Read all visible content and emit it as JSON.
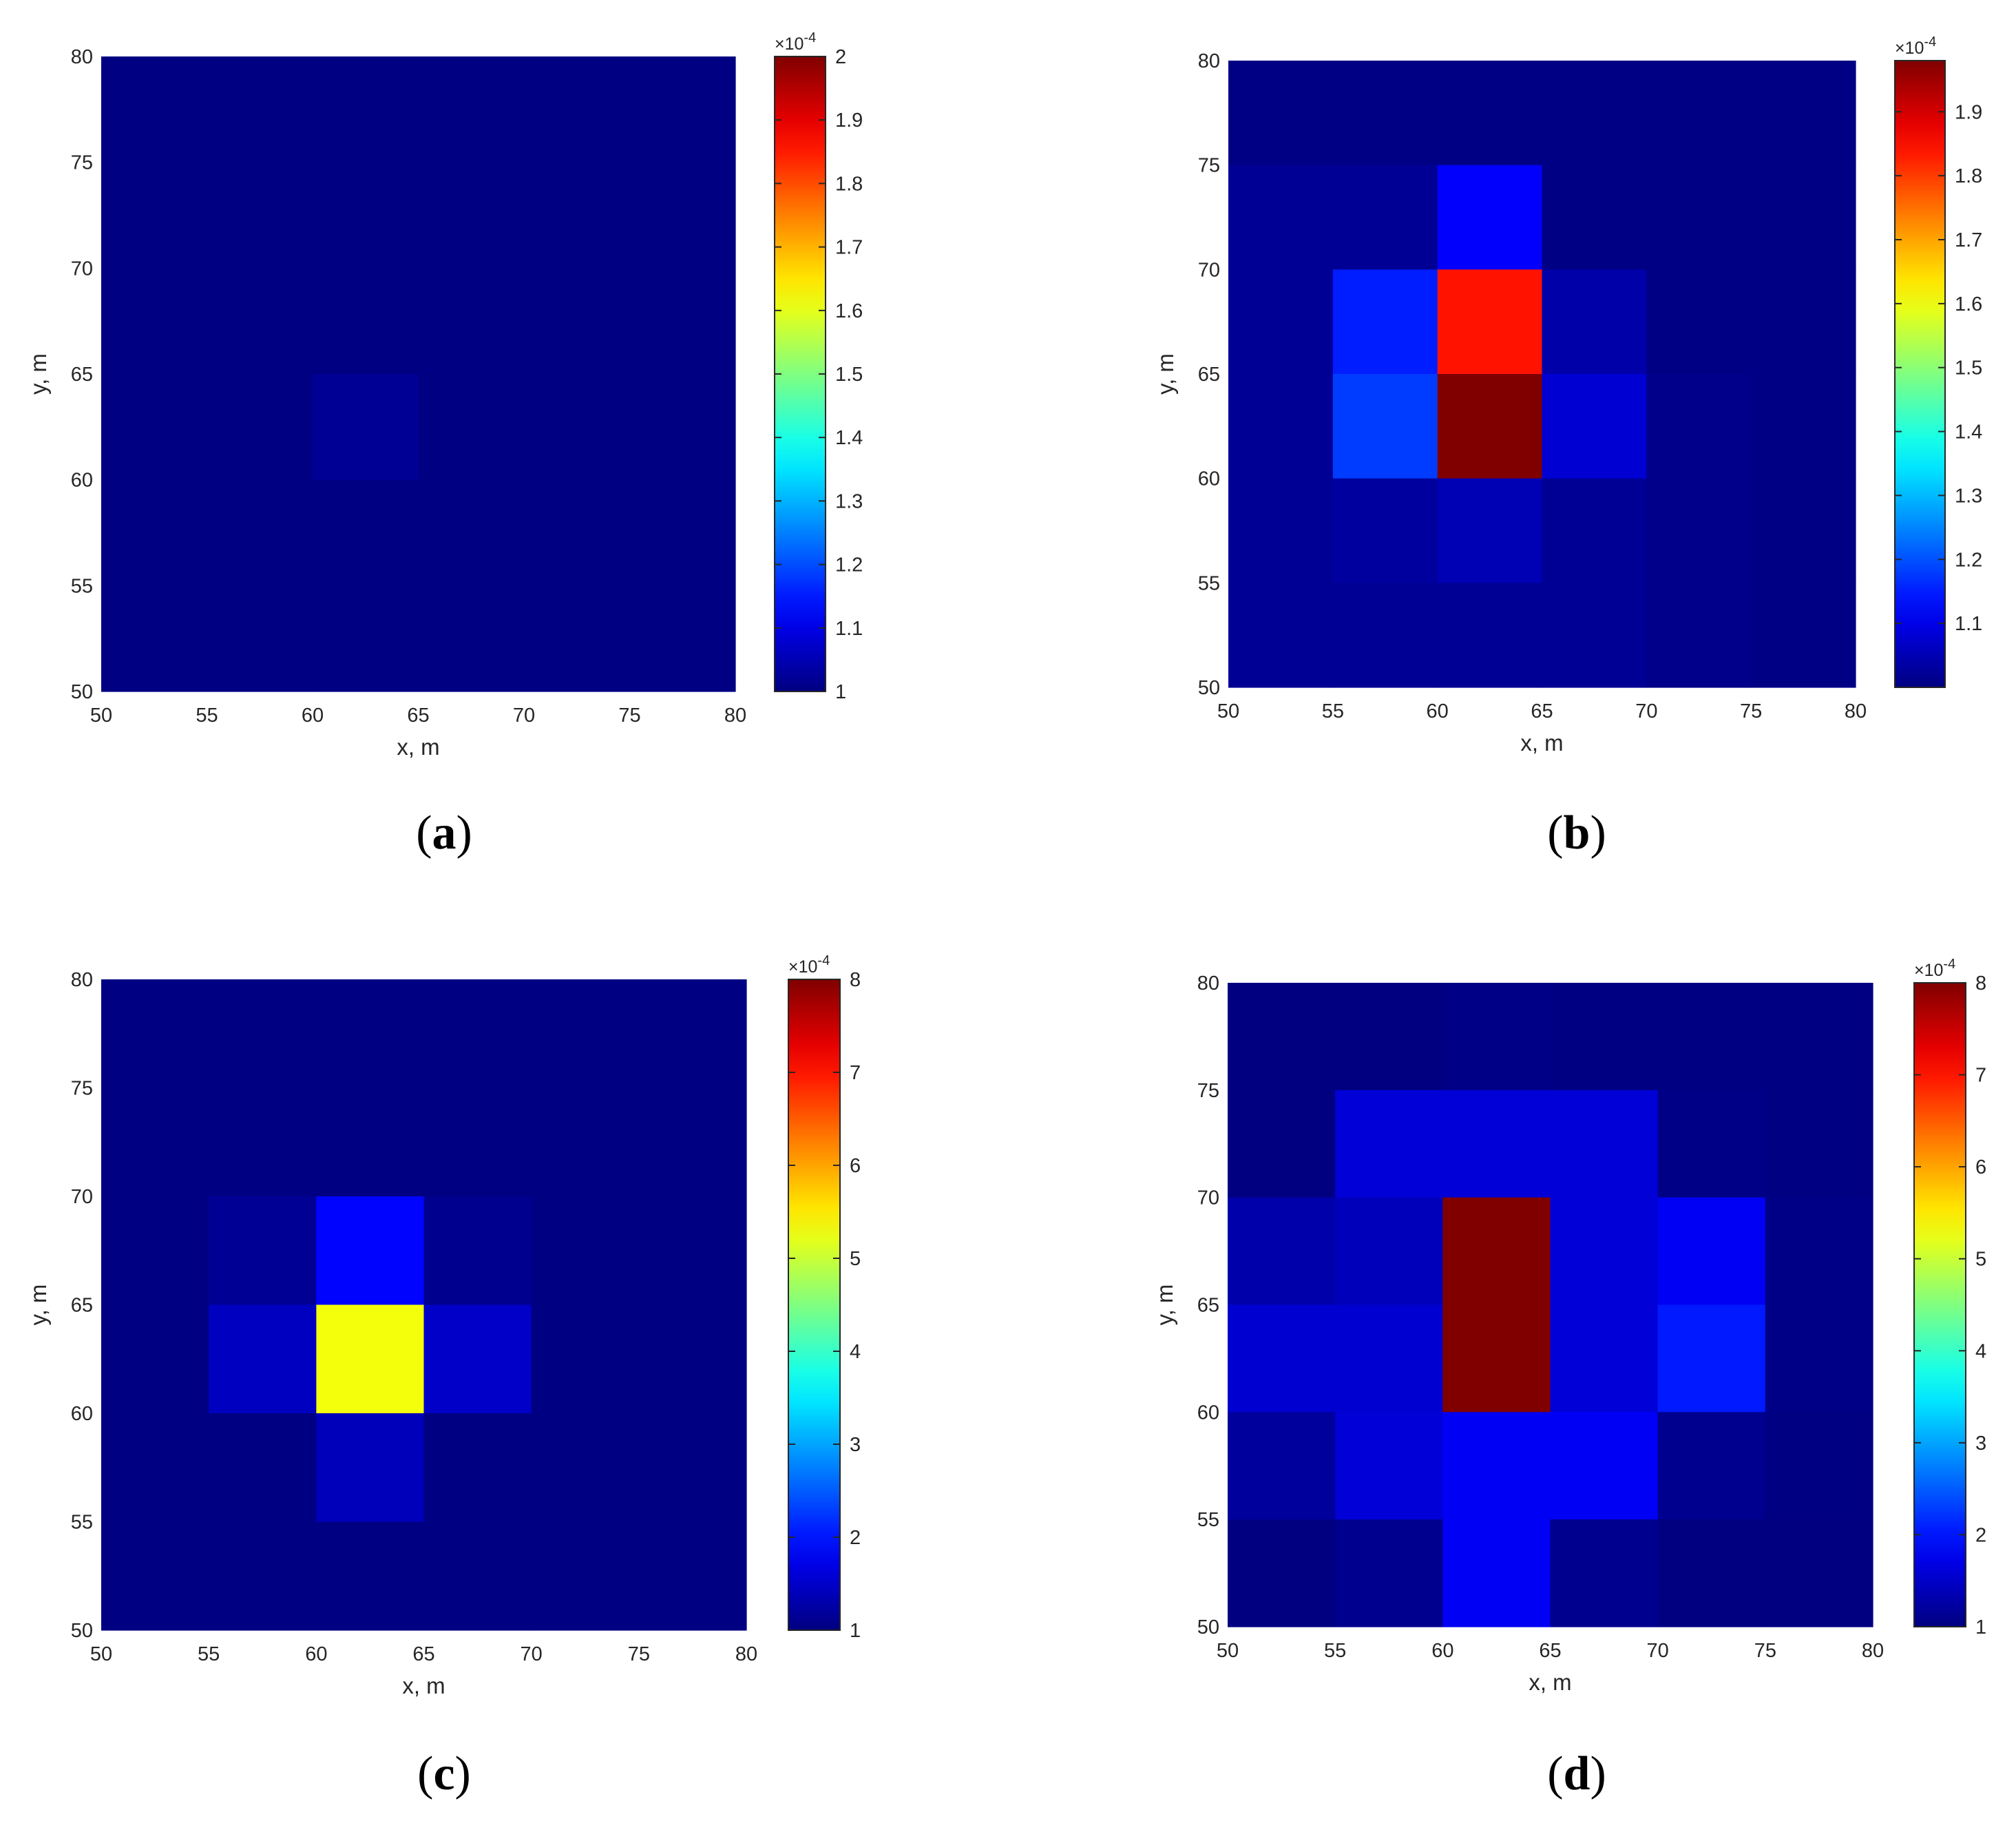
{
  "chart_data": [
    {
      "type": "heatmap",
      "panel_label": "a",
      "xlabel": "x, m",
      "ylabel": "y, m",
      "xlim": [
        50,
        80
      ],
      "ylim": [
        50,
        80
      ],
      "x_edges": [
        50,
        55,
        60,
        65,
        70,
        75,
        80
      ],
      "y_edges": [
        50,
        55,
        60,
        65,
        70,
        75,
        80
      ],
      "x_ticks": [
        50,
        55,
        60,
        65,
        70,
        75,
        80
      ],
      "y_ticks": [
        50,
        55,
        60,
        65,
        70,
        75,
        80
      ],
      "values": [
        [
          1.002,
          1.002,
          1.002,
          1.002,
          1.002,
          1.002
        ],
        [
          1.002,
          1.002,
          1.002,
          1.002,
          1.002,
          1.002
        ],
        [
          1.002,
          1.002,
          1.002,
          1.002,
          1.002,
          1.002
        ],
        [
          1.002,
          1.002,
          1.02,
          1.002,
          1.002,
          1.002
        ],
        [
          1.002,
          1.002,
          1.002,
          1.002,
          1.002,
          1.002
        ],
        [
          1.002,
          1.002,
          1.002,
          1.002,
          1.002,
          1.002
        ]
      ],
      "colormap": "jet",
      "colorbar": {
        "range": [
          1,
          2
        ],
        "ticks": [
          1,
          1.1,
          1.2,
          1.3,
          1.4,
          1.5,
          1.6,
          1.7,
          1.8,
          1.9,
          2
        ],
        "tick_labels": [
          "1",
          "1.1",
          "1.2",
          "1.3",
          "1.4",
          "1.5",
          "1.6",
          "1.7",
          "1.8",
          "1.9",
          "2"
        ],
        "exponent_label": "×10",
        "exponent_power": "-4"
      }
    },
    {
      "type": "heatmap",
      "panel_label": "b",
      "xlabel": "x, m",
      "ylabel": "y, m",
      "xlim": [
        50,
        80
      ],
      "ylim": [
        50,
        80
      ],
      "x_edges": [
        50,
        55,
        60,
        65,
        70,
        75,
        80
      ],
      "y_edges": [
        50,
        55,
        60,
        65,
        70,
        75,
        80
      ],
      "x_ticks": [
        50,
        55,
        60,
        65,
        70,
        75,
        80
      ],
      "y_ticks": [
        50,
        55,
        60,
        65,
        70,
        75,
        80
      ],
      "values": [
        [
          1.005,
          1.005,
          1.005,
          1.005,
          1.005,
          1.005
        ],
        [
          1.02,
          1.02,
          1.12,
          1.005,
          1.005,
          1.005
        ],
        [
          1.02,
          1.15,
          1.84,
          1.04,
          1.005,
          1.005
        ],
        [
          1.02,
          1.18,
          1.98,
          1.08,
          1.01,
          1.005
        ],
        [
          1.02,
          1.03,
          1.05,
          1.02,
          1.01,
          1.005
        ],
        [
          1.02,
          1.02,
          1.02,
          1.02,
          1.01,
          1.005
        ]
      ],
      "colormap": "jet",
      "colorbar": {
        "range": [
          1,
          1.98
        ],
        "ticks": [
          1.1,
          1.2,
          1.3,
          1.4,
          1.5,
          1.6,
          1.7,
          1.8,
          1.9
        ],
        "tick_labels": [
          "1.1",
          "1.2",
          "1.3",
          "1.4",
          "1.5",
          "1.6",
          "1.7",
          "1.8",
          "1.9"
        ],
        "exponent_label": "×10",
        "exponent_power": "-4"
      }
    },
    {
      "type": "heatmap",
      "panel_label": "c",
      "xlabel": "x, m",
      "ylabel": "y, m",
      "xlim": [
        50,
        80
      ],
      "ylim": [
        50,
        80
      ],
      "x_edges": [
        50,
        55,
        60,
        65,
        70,
        75,
        80
      ],
      "y_edges": [
        50,
        55,
        60,
        65,
        70,
        75,
        80
      ],
      "x_ticks": [
        50,
        55,
        60,
        65,
        70,
        75,
        80
      ],
      "y_ticks": [
        50,
        55,
        60,
        65,
        70,
        75,
        80
      ],
      "values": [
        [
          1.02,
          1.02,
          1.02,
          1.02,
          1.02,
          1.02
        ],
        [
          1.02,
          1.02,
          1.02,
          1.02,
          1.02,
          1.02
        ],
        [
          1.02,
          1.15,
          1.9,
          1.1,
          1.02,
          1.02
        ],
        [
          1.02,
          1.45,
          5.3,
          1.5,
          1.02,
          1.02
        ],
        [
          1.02,
          1.02,
          1.4,
          1.02,
          1.02,
          1.02
        ],
        [
          1.02,
          1.02,
          1.02,
          1.02,
          1.02,
          1.02
        ]
      ],
      "colormap": "jet",
      "colorbar": {
        "range": [
          1,
          8
        ],
        "ticks": [
          1,
          2,
          3,
          4,
          5,
          6,
          7,
          8
        ],
        "tick_labels": [
          "1",
          "2",
          "3",
          "4",
          "5",
          "6",
          "7",
          "8"
        ],
        "exponent_label": "×10",
        "exponent_power": "-4"
      }
    },
    {
      "type": "heatmap",
      "panel_label": "d",
      "xlabel": "x, m",
      "ylabel": "y, m",
      "xlim": [
        50,
        80
      ],
      "ylim": [
        50,
        80
      ],
      "x_edges": [
        50,
        55,
        60,
        65,
        70,
        75,
        80
      ],
      "y_edges": [
        50,
        55,
        60,
        65,
        70,
        75,
        80
      ],
      "x_ticks": [
        50,
        55,
        60,
        65,
        70,
        75,
        80
      ],
      "y_ticks": [
        50,
        55,
        60,
        65,
        70,
        75,
        80
      ],
      "values": [
        [
          1.0,
          1.0,
          1.05,
          1.02,
          1.02,
          1.02
        ],
        [
          1.0,
          1.6,
          1.6,
          1.6,
          1.05,
          1.02
        ],
        [
          1.3,
          1.4,
          8.0,
          1.6,
          1.8,
          1.05
        ],
        [
          1.55,
          1.55,
          8.0,
          1.6,
          2.05,
          1.05
        ],
        [
          1.2,
          1.6,
          1.8,
          1.8,
          1.1,
          1.02
        ],
        [
          1.0,
          1.1,
          1.8,
          1.1,
          1.0,
          1.0
        ]
      ],
      "colormap": "jet",
      "colorbar": {
        "range": [
          1,
          8
        ],
        "ticks": [
          1,
          2,
          3,
          4,
          5,
          6,
          7,
          8
        ],
        "tick_labels": [
          "1",
          "2",
          "3",
          "4",
          "5",
          "6",
          "7",
          "8"
        ],
        "exponent_label": "×10",
        "exponent_power": "-4"
      }
    }
  ]
}
